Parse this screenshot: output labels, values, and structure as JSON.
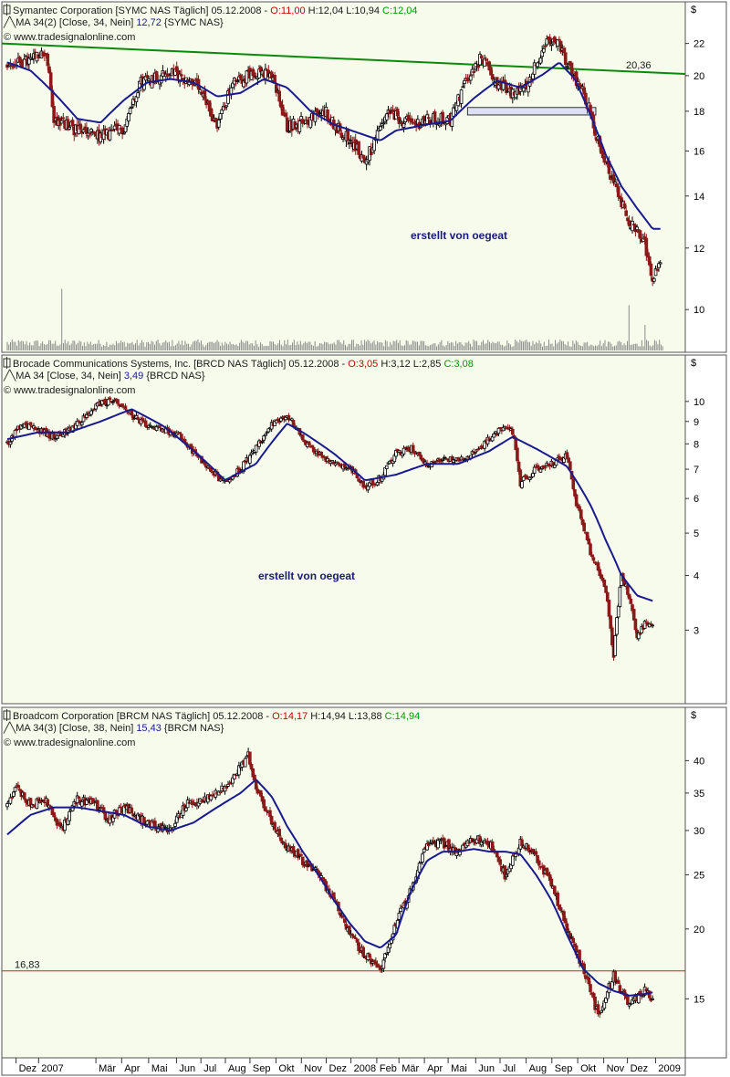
{
  "colors": {
    "panel_bg": "#f6fbeb",
    "price_candle": "#000000",
    "down_candle": "#8b1a1a",
    "ma_line": "#1a1a90",
    "trend_line": "#0a8a0a",
    "support_line": "#d02020",
    "open_red": "#cc0000",
    "close_green": "#009900"
  },
  "x_axis": {
    "labels": [
      "Dez",
      "2007",
      "Mär",
      "Apr",
      "Mai",
      "Jun",
      "Jul",
      "Aug",
      "Sep",
      "Okt",
      "Nov",
      "Dez",
      "2008",
      "Feb",
      "Mär",
      "Apr",
      "Mai",
      "Jun",
      "Jul",
      "Aug",
      "Sep",
      "Okt",
      "Nov",
      "Dez",
      "2009"
    ]
  },
  "chart_data": [
    {
      "type": "candlestick",
      "header": {
        "name": "Symantec Corporation [SYMC NAS  Täglich] 05.12.2008 - ",
        "open": "O:11,00",
        "hl": " H:12,04 L:10,94 ",
        "close": "C:12,04"
      },
      "ma_legend": {
        "prefix": "MA 34(2) [Close, 34, Nein] ",
        "value": "12,72",
        "suffix": " {SYMC NAS}"
      },
      "source": "© www.tradesignalonline.com",
      "watermark": "erstellt von oegeat",
      "currency": "$",
      "y_scale": "log",
      "ylim": [
        9.3,
        23.2
      ],
      "y_ticks": [
        "10",
        "12",
        "14",
        "16",
        "18",
        "20",
        "22"
      ],
      "annotation": "20,36",
      "trend_line": {
        "from": [
          "Dez 2006",
          22.0
        ],
        "to": [
          "Dez 2008",
          20.1
        ]
      },
      "price_keypoints": [
        [
          0,
          20.6
        ],
        [
          3,
          20.9
        ],
        [
          5,
          21.4
        ],
        [
          6,
          17.6
        ],
        [
          9,
          17.0
        ],
        [
          12,
          16.7
        ],
        [
          15,
          17.1
        ],
        [
          17,
          19.6
        ],
        [
          21,
          20.2
        ],
        [
          24,
          19.6
        ],
        [
          27,
          17.3
        ],
        [
          29,
          19.5
        ],
        [
          32,
          20.3
        ],
        [
          34,
          19.9
        ],
        [
          36,
          17.2
        ],
        [
          39,
          17.6
        ],
        [
          41,
          18.0
        ],
        [
          42,
          17.3
        ],
        [
          44,
          16.6
        ],
        [
          46,
          15.5
        ],
        [
          47,
          16.2
        ],
        [
          49,
          17.9
        ],
        [
          52,
          17.3
        ],
        [
          55,
          17.6
        ],
        [
          57,
          17.5
        ],
        [
          59,
          19.7
        ],
        [
          61,
          21.1
        ],
        [
          63,
          19.6
        ],
        [
          65,
          18.9
        ],
        [
          67,
          19.6
        ],
        [
          69,
          21.9
        ],
        [
          71,
          22.0
        ],
        [
          72,
          20.6
        ],
        [
          74,
          19.2
        ],
        [
          76,
          16.5
        ],
        [
          78,
          14.6
        ],
        [
          80,
          13.0
        ],
        [
          82,
          12.1
        ],
        [
          83,
          11.0
        ],
        [
          84,
          11.7
        ]
      ],
      "ma_keypoints": [
        [
          0,
          20.8
        ],
        [
          3,
          20.3
        ],
        [
          6,
          19.0
        ],
        [
          9,
          17.6
        ],
        [
          12,
          17.4
        ],
        [
          15,
          18.6
        ],
        [
          18,
          19.6
        ],
        [
          21,
          19.8
        ],
        [
          24,
          19.6
        ],
        [
          27,
          18.8
        ],
        [
          30,
          19.0
        ],
        [
          33,
          19.8
        ],
        [
          36,
          19.3
        ],
        [
          39,
          18.0
        ],
        [
          42,
          17.3
        ],
        [
          45,
          16.9
        ],
        [
          48,
          16.5
        ],
        [
          50,
          17.0
        ],
        [
          54,
          17.3
        ],
        [
          57,
          17.5
        ],
        [
          60,
          18.7
        ],
        [
          63,
          19.7
        ],
        [
          66,
          19.3
        ],
        [
          69,
          20.1
        ],
        [
          71,
          20.8
        ],
        [
          73,
          19.8
        ],
        [
          75,
          17.8
        ],
        [
          77,
          15.8
        ],
        [
          79,
          14.4
        ],
        [
          81,
          13.5
        ],
        [
          83,
          12.7
        ],
        [
          84,
          12.7
        ]
      ],
      "volume_spikes": [
        [
          7,
          0.8
        ],
        [
          80,
          0.55
        ],
        [
          82,
          0.25
        ]
      ],
      "boxes": [
        {
          "x0": 59.2,
          "x1": 75.7,
          "y0": 17.8,
          "y1": 18.2
        }
      ]
    },
    {
      "type": "candlestick",
      "header": {
        "name": "Brocade Communications Systems, Inc. [BRCD NAS  Täglich] 05.12.2008 - ",
        "open": "O:3,05",
        "hl": " H:3,12 L:2,85 ",
        "close": "C:3,08"
      },
      "ma_legend": {
        "prefix": "MA 34 [Close, 34, Nein] ",
        "value": "3,49",
        "suffix": " {BRCD NAS}"
      },
      "source": "© www.tradesignalonline.com",
      "watermark": "erstellt von oegeat",
      "currency": "$",
      "y_scale": "log",
      "ylim": [
        2.2,
        11.0
      ],
      "y_ticks": [
        "3",
        "4",
        "5",
        "6",
        "7",
        "8",
        "9",
        "10"
      ],
      "price_keypoints": [
        [
          0,
          8.0
        ],
        [
          2,
          8.9
        ],
        [
          4,
          8.6
        ],
        [
          6,
          8.3
        ],
        [
          8,
          8.6
        ],
        [
          10,
          9.2
        ],
        [
          12,
          9.9
        ],
        [
          14,
          10.0
        ],
        [
          16,
          9.3
        ],
        [
          18,
          8.7
        ],
        [
          20,
          8.6
        ],
        [
          22,
          8.4
        ],
        [
          24,
          7.6
        ],
        [
          26,
          7.0
        ],
        [
          28,
          6.5
        ],
        [
          30,
          7.0
        ],
        [
          32,
          7.8
        ],
        [
          34,
          8.8
        ],
        [
          36,
          9.3
        ],
        [
          38,
          8.2
        ],
        [
          40,
          7.6
        ],
        [
          42,
          7.2
        ],
        [
          44,
          7.0
        ],
        [
          46,
          6.4
        ],
        [
          48,
          6.7
        ],
        [
          50,
          7.6
        ],
        [
          52,
          7.8
        ],
        [
          54,
          7.2
        ],
        [
          56,
          7.4
        ],
        [
          58,
          7.3
        ],
        [
          60,
          7.6
        ],
        [
          62,
          8.2
        ],
        [
          64,
          8.8
        ],
        [
          65,
          8.5
        ],
        [
          66,
          6.5
        ],
        [
          68,
          7.0
        ],
        [
          70,
          7.2
        ],
        [
          72,
          7.5
        ],
        [
          73,
          6.0
        ],
        [
          75,
          4.5
        ],
        [
          77,
          3.7
        ],
        [
          78,
          2.6
        ],
        [
          79,
          4.0
        ],
        [
          80,
          3.6
        ],
        [
          81,
          2.9
        ],
        [
          82,
          3.1
        ],
        [
          83,
          3.1
        ]
      ],
      "ma_keypoints": [
        [
          0,
          8.2
        ],
        [
          4,
          8.5
        ],
        [
          8,
          8.5
        ],
        [
          12,
          9.0
        ],
        [
          16,
          9.6
        ],
        [
          20,
          8.8
        ],
        [
          24,
          7.7
        ],
        [
          28,
          6.6
        ],
        [
          32,
          7.2
        ],
        [
          36,
          8.9
        ],
        [
          38,
          8.5
        ],
        [
          42,
          7.6
        ],
        [
          46,
          6.6
        ],
        [
          50,
          6.8
        ],
        [
          54,
          7.2
        ],
        [
          58,
          7.2
        ],
        [
          62,
          7.7
        ],
        [
          65,
          8.3
        ],
        [
          68,
          7.8
        ],
        [
          72,
          7.1
        ],
        [
          75,
          5.8
        ],
        [
          77,
          4.8
        ],
        [
          79,
          4.0
        ],
        [
          81,
          3.6
        ],
        [
          83,
          3.5
        ]
      ]
    },
    {
      "type": "candlestick",
      "header": {
        "name": "Broadcom Corporation [BRCM NAS  Täglich] 05.12.2008 - ",
        "open": "O:14,17",
        "hl": " H:14,94 L:13,88 ",
        "close": "C:14,94"
      },
      "ma_legend": {
        "prefix": "MA 34(3) [Close, 38, Nein] ",
        "value": "15,43",
        "suffix": " {BRCM NAS}"
      },
      "source": "© www.tradesignalonline.com",
      "currency": "$",
      "y_scale": "log",
      "ylim": [
        12.4,
        44.5
      ],
      "y_ticks": [
        "15",
        "20",
        "25",
        "30",
        "35",
        "40"
      ],
      "annotation": "16,83",
      "support_level": 16.83,
      "price_keypoints": [
        [
          0,
          33.0
        ],
        [
          1,
          36.0
        ],
        [
          3,
          33.5
        ],
        [
          5,
          34.0
        ],
        [
          7,
          30.0
        ],
        [
          9,
          34.0
        ],
        [
          11,
          33.8
        ],
        [
          13,
          31.5
        ],
        [
          15,
          33.0
        ],
        [
          17,
          31.5
        ],
        [
          19,
          30.5
        ],
        [
          21,
          30.0
        ],
        [
          23,
          33.5
        ],
        [
          25,
          34.0
        ],
        [
          27,
          35.0
        ],
        [
          29,
          37.0
        ],
        [
          31,
          41.0
        ],
        [
          32,
          36.0
        ],
        [
          34,
          31.0
        ],
        [
          36,
          28.0
        ],
        [
          38,
          26.5
        ],
        [
          40,
          25.0
        ],
        [
          42,
          22.5
        ],
        [
          44,
          19.5
        ],
        [
          46,
          18.0
        ],
        [
          48,
          17.0
        ],
        [
          50,
          20.5
        ],
        [
          52,
          23.5
        ],
        [
          54,
          28.5
        ],
        [
          56,
          28.5
        ],
        [
          58,
          27.5
        ],
        [
          60,
          29.0
        ],
        [
          62,
          28.5
        ],
        [
          64,
          25.0
        ],
        [
          66,
          28.5
        ],
        [
          68,
          27.0
        ],
        [
          70,
          24.0
        ],
        [
          72,
          20.0
        ],
        [
          74,
          17.0
        ],
        [
          76,
          14.0
        ],
        [
          78,
          16.5
        ],
        [
          80,
          14.5
        ],
        [
          82,
          15.5
        ],
        [
          83,
          14.9
        ]
      ],
      "ma_keypoints": [
        [
          0,
          29.5
        ],
        [
          3,
          32.0
        ],
        [
          6,
          33.0
        ],
        [
          9,
          33.0
        ],
        [
          12,
          32.5
        ],
        [
          15,
          32.0
        ],
        [
          18,
          30.5
        ],
        [
          21,
          30.0
        ],
        [
          24,
          31.0
        ],
        [
          27,
          33.0
        ],
        [
          30,
          35.0
        ],
        [
          32,
          37.0
        ],
        [
          34,
          34.5
        ],
        [
          36,
          30.5
        ],
        [
          38,
          27.5
        ],
        [
          40,
          25.0
        ],
        [
          42,
          22.5
        ],
        [
          44,
          20.5
        ],
        [
          46,
          19.0
        ],
        [
          48,
          18.5
        ],
        [
          50,
          19.5
        ],
        [
          52,
          23.5
        ],
        [
          54,
          26.5
        ],
        [
          56,
          27.5
        ],
        [
          58,
          27.5
        ],
        [
          60,
          27.8
        ],
        [
          62,
          27.5
        ],
        [
          64,
          27.5
        ],
        [
          66,
          27.2
        ],
        [
          68,
          25.0
        ],
        [
          70,
          22.5
        ],
        [
          72,
          19.5
        ],
        [
          74,
          17.0
        ],
        [
          76,
          16.0
        ],
        [
          78,
          15.5
        ],
        [
          80,
          15.2
        ],
        [
          82,
          15.3
        ],
        [
          83,
          15.4
        ]
      ]
    }
  ]
}
